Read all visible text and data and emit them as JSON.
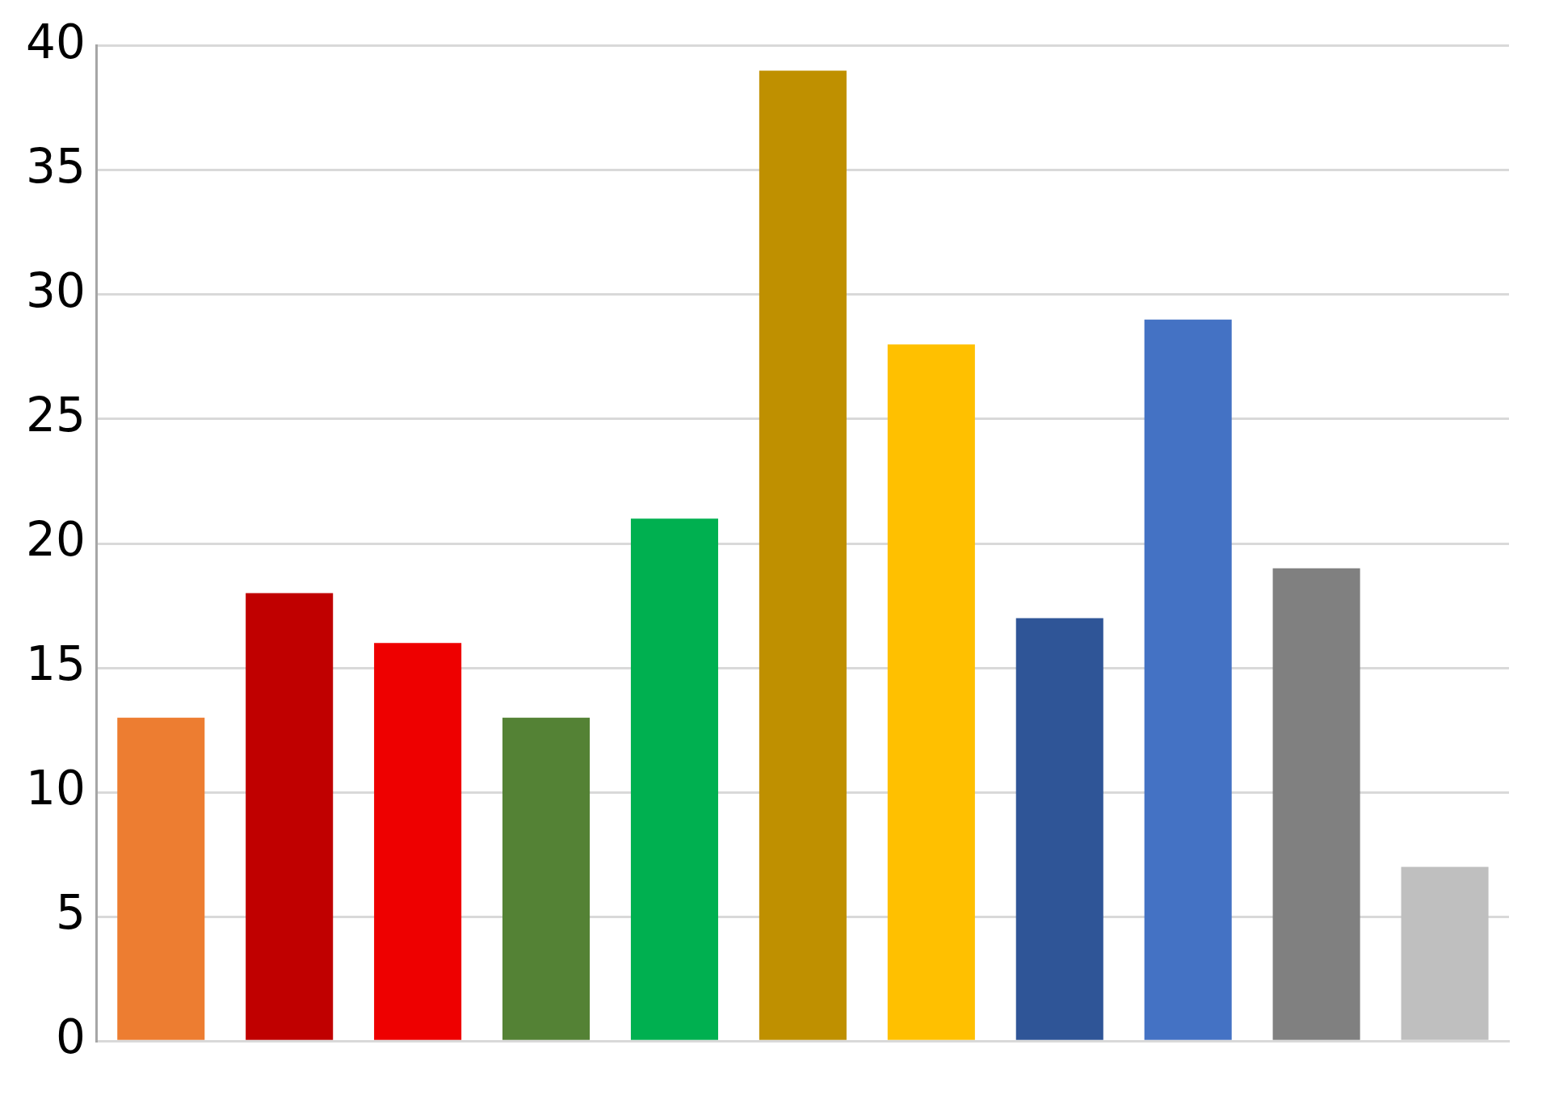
{
  "chart_data": {
    "type": "bar",
    "categories": [
      null,
      null,
      null,
      null,
      null,
      null,
      null,
      null,
      null,
      null,
      null
    ],
    "values": [
      13,
      18,
      16,
      13,
      21,
      39,
      28,
      17,
      29,
      19,
      7
    ],
    "colors": [
      "#ed7d31",
      "#c00000",
      "#ee0000",
      "#548235",
      "#00b050",
      "#bf9000",
      "#ffc000",
      "#2f5597",
      "#4472c4",
      "#808080",
      "#bfbfbf"
    ],
    "ylim": [
      0,
      40
    ],
    "yticks": [
      0,
      5,
      10,
      15,
      20,
      25,
      30,
      35,
      40
    ],
    "grid": "y",
    "tick_labels": "y"
  }
}
